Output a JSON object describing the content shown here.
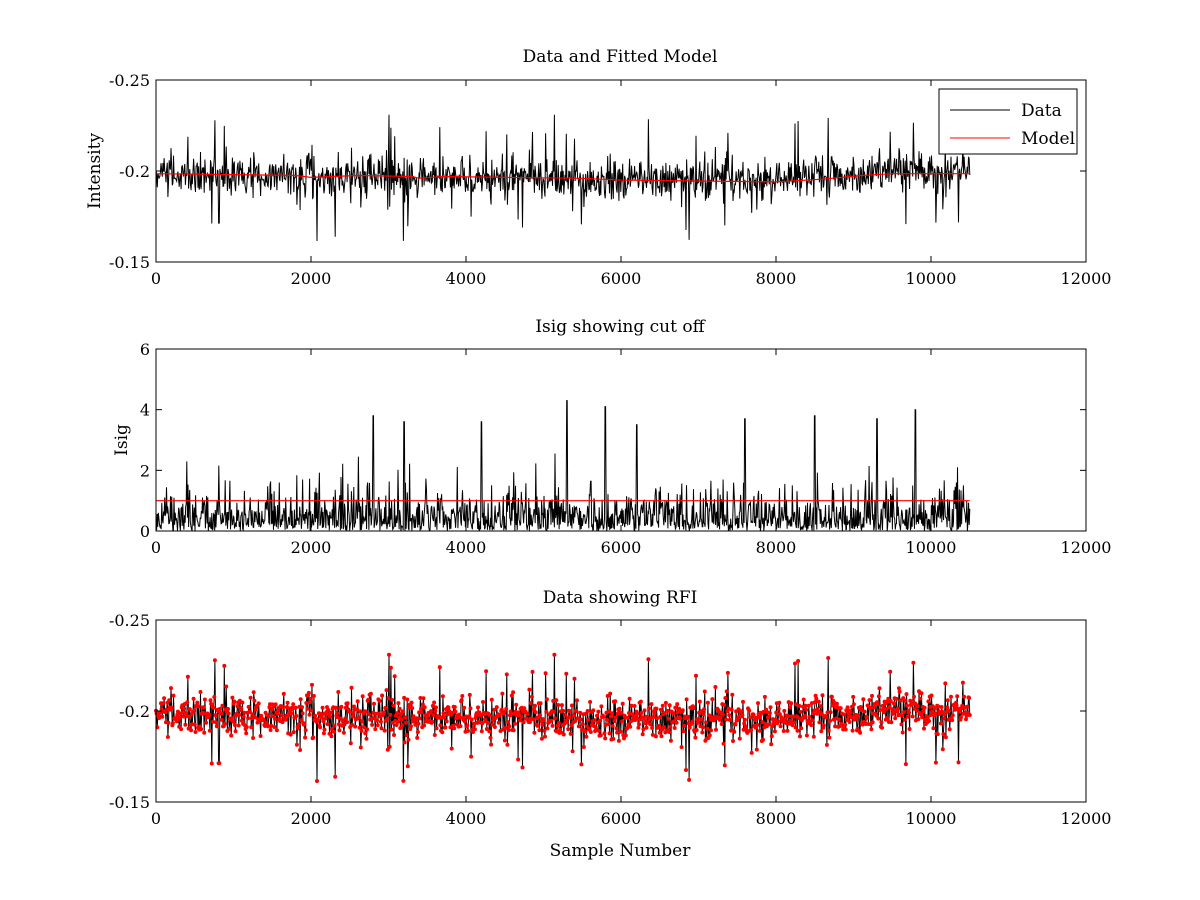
{
  "chart_data": [
    {
      "type": "line",
      "title": "Data and Fitted Model",
      "xlabel": "",
      "ylabel": "Intensity",
      "xlim": [
        0,
        12000
      ],
      "ylim": [
        -0.25,
        -0.15
      ],
      "x_ticks": [
        "0",
        "2000",
        "4000",
        "6000",
        "8000",
        "10000",
        "12000"
      ],
      "y_ticks": [
        "-0.15",
        "-0.2",
        "-0.25"
      ],
      "y_axis_reversed": true,
      "legend": {
        "placement": "top-right",
        "entries": [
          "Data",
          "Model"
        ]
      },
      "series": [
        {
          "name": "Data",
          "color": "#000000",
          "style": "dense noisy line",
          "x_range": [
            0,
            10500
          ],
          "noise_amplitude": 0.012,
          "outlier_amplitude": 0.03,
          "trend": [
            {
              "x": 0,
              "y": -0.1985
            },
            {
              "x": 2000,
              "y": -0.1975
            },
            {
              "x": 4000,
              "y": -0.197
            },
            {
              "x": 6000,
              "y": -0.1955
            },
            {
              "x": 8000,
              "y": -0.1945
            },
            {
              "x": 9000,
              "y": -0.198
            },
            {
              "x": 9500,
              "y": -0.2
            },
            {
              "x": 10500,
              "y": -0.1985
            }
          ]
        },
        {
          "name": "Model",
          "color": "#ff0000",
          "style": "line",
          "points": [
            {
              "x": 0,
              "y": -0.1985
            },
            {
              "x": 1000,
              "y": -0.198
            },
            {
              "x": 1800,
              "y": -0.1975
            },
            {
              "x": 2000,
              "y": -0.1965
            },
            {
              "x": 2600,
              "y": -0.1975
            },
            {
              "x": 3300,
              "y": -0.197
            },
            {
              "x": 3400,
              "y": -0.196
            },
            {
              "x": 3700,
              "y": -0.197
            },
            {
              "x": 4500,
              "y": -0.1965
            },
            {
              "x": 5500,
              "y": -0.196
            },
            {
              "x": 6000,
              "y": -0.195
            },
            {
              "x": 7000,
              "y": -0.1945
            },
            {
              "x": 8000,
              "y": -0.194
            },
            {
              "x": 8600,
              "y": -0.1955
            },
            {
              "x": 9100,
              "y": -0.1975
            },
            {
              "x": 9500,
              "y": -0.1985
            },
            {
              "x": 10500,
              "y": -0.1985
            }
          ]
        }
      ]
    },
    {
      "type": "line",
      "title": "Isig showing cut off",
      "xlabel": "",
      "ylabel": "Isig",
      "xlim": [
        0,
        12000
      ],
      "ylim": [
        0,
        6
      ],
      "x_ticks": [
        "0",
        "2000",
        "4000",
        "6000",
        "8000",
        "10000",
        "12000"
      ],
      "y_ticks": [
        "0",
        "2",
        "4",
        "6"
      ],
      "series": [
        {
          "color": "#000000",
          "style": "dense spiky line",
          "x_range": [
            0,
            10500
          ],
          "typical_range": [
            0,
            1.5
          ],
          "peak_values": [
            {
              "x": 2800,
              "y": 3.8
            },
            {
              "x": 3200,
              "y": 3.6
            },
            {
              "x": 4200,
              "y": 3.6
            },
            {
              "x": 5300,
              "y": 4.3
            },
            {
              "x": 5800,
              "y": 4.1
            },
            {
              "x": 6200,
              "y": 3.5
            },
            {
              "x": 7600,
              "y": 3.7
            },
            {
              "x": 8500,
              "y": 3.8
            },
            {
              "x": 9300,
              "y": 3.7
            },
            {
              "x": 9800,
              "y": 4.0
            }
          ]
        },
        {
          "color": "#ff0000",
          "style": "cut-off line",
          "points": [
            {
              "x": 0,
              "y": 1
            },
            {
              "x": 10500,
              "y": 1
            }
          ]
        }
      ]
    },
    {
      "type": "line",
      "title": "Data showing RFI",
      "xlabel": "Sample Number",
      "ylabel": "",
      "xlim": [
        0,
        12000
      ],
      "ylim": [
        -0.25,
        -0.15
      ],
      "x_ticks": [
        "0",
        "2000",
        "4000",
        "6000",
        "8000",
        "10000",
        "12000"
      ],
      "y_ticks": [
        "-0.15",
        "-0.2",
        "-0.25"
      ],
      "y_axis_reversed": true,
      "series": [
        {
          "color": "#000000",
          "style": "line",
          "x_range": [
            0,
            10500
          ],
          "noise_amplitude": 0.012,
          "outlier_amplitude": 0.03,
          "trend": [
            {
              "x": 0,
              "y": -0.1985
            },
            {
              "x": 2000,
              "y": -0.1975
            },
            {
              "x": 4000,
              "y": -0.197
            },
            {
              "x": 6000,
              "y": -0.1955
            },
            {
              "x": 8000,
              "y": -0.1945
            },
            {
              "x": 9000,
              "y": -0.198
            },
            {
              "x": 9500,
              "y": -0.2
            },
            {
              "x": 10500,
              "y": -0.1985
            }
          ]
        },
        {
          "color": "#ff0000",
          "style": "point markers",
          "note_sampling": "all points flagged"
        }
      ]
    }
  ]
}
